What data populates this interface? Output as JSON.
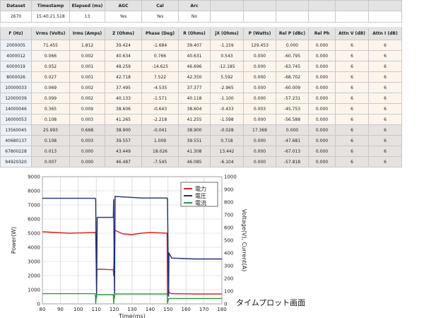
{
  "table": {
    "meta_headers": [
      "Dataset",
      "Timestamp",
      "Elapsed (ms)",
      "AGC",
      "Cal",
      "Arc"
    ],
    "meta_values": [
      "2670",
      "15:40:21.518",
      "13",
      "Yes",
      "Yes",
      "No"
    ],
    "columns": [
      "F (Hz)",
      "Vrms (Volts)",
      "Irms (Amps)",
      "Z (Ohms)",
      "Phase (Deg)",
      "R (Ohms)",
      "jX (Ohms)",
      "P (Watts)",
      "Rel P (dBc)",
      "Rel Ph",
      "Attn V (dB)",
      "Attn I (dB)"
    ],
    "rows": [
      [
        "2000005",
        "71.455",
        "1.812",
        "39.424",
        "-1.684",
        "39.407",
        "-1.159",
        "129.453",
        "0.000",
        "0.000",
        "6",
        "6"
      ],
      [
        "4000012",
        "0.066",
        "0.002",
        "40.634",
        "0.766",
        "40.631",
        "0.543",
        "0.000",
        "-60.795",
        "0.000",
        "6",
        "6"
      ],
      [
        "6000019",
        "0.052",
        "0.001",
        "48.259",
        "-14.625",
        "46.696",
        "-12.185",
        "0.000",
        "-63.745",
        "0.000",
        "6",
        "6"
      ],
      [
        "8000026",
        "0.027",
        "0.001",
        "42.718",
        "7.522",
        "42.350",
        "5.592",
        "0.000",
        "-68.702",
        "0.000",
        "6",
        "6"
      ],
      [
        "10000033",
        "0.069",
        "0.002",
        "37.495",
        "-4.535",
        "37.377",
        "-2.965",
        "0.000",
        "-60.009",
        "0.000",
        "6",
        "6"
      ],
      [
        "12000039",
        "0.099",
        "0.002",
        "40.133",
        "-1.571",
        "40.118",
        "-1.100",
        "0.000",
        "-57.231",
        "0.000",
        "6",
        "6"
      ],
      [
        "14000046",
        "0.365",
        "0.009",
        "38.606",
        "-0.643",
        "38.604",
        "-0.433",
        "0.003",
        "-45.753",
        "0.000",
        "6",
        "6"
      ],
      [
        "16000053",
        "0.108",
        "0.003",
        "41.265",
        "-2.218",
        "41.255",
        "-1.598",
        "0.000",
        "-56.588",
        "0.000",
        "6",
        "6"
      ],
      [
        "13560045",
        "25.993",
        "0.668",
        "38.900",
        "-0.041",
        "38.900",
        "-0.028",
        "17.369",
        "0.000",
        "0.000",
        "6",
        "6"
      ],
      [
        "40680137",
        "0.108",
        "0.003",
        "39.557",
        "1.009",
        "39.551",
        "0.718",
        "0.000",
        "-47.681",
        "0.000",
        "6",
        "6"
      ],
      [
        "67800228",
        "0.013",
        "0.000",
        "43.449",
        "18.026",
        "41.308",
        "13.442",
        "0.000",
        "-67.013",
        "0.000",
        "6",
        "6"
      ],
      [
        "94920320",
        "0.007",
        "0.000",
        "46.487",
        "-7.545",
        "46.085",
        "-6.104",
        "0.000",
        "-57.818",
        "0.000",
        "6",
        "6"
      ]
    ]
  },
  "chart_data": {
    "type": "line",
    "xlabel": "Time(ms)",
    "ylabel": "Power(W)",
    "y2label": "Voltage(V), Current(A)",
    "xlim": [
      80,
      180
    ],
    "ylim": [
      0,
      9000
    ],
    "y2lim": [
      0,
      1000
    ],
    "xticks": [
      80,
      90,
      100,
      110,
      120,
      130,
      140,
      150,
      160,
      170,
      180
    ],
    "yticks": [
      0,
      1000,
      2000,
      3000,
      4000,
      5000,
      6000,
      7000,
      8000,
      9000
    ],
    "y2ticks": [
      0,
      100,
      200,
      300,
      400,
      500,
      600,
      700,
      800,
      900,
      1000
    ],
    "legend_position": "top-right",
    "grid": true,
    "series": [
      {
        "name": "電力",
        "axis": "left",
        "color": "#e02020",
        "x": [
          80,
          95,
          109.5,
          109.7,
          110.2,
          110.4,
          113,
          117,
          119.5,
          119.7,
          120.2,
          120.4,
          125,
          130,
          135,
          140,
          149.5,
          149.7,
          150.3,
          150.5,
          152,
          165,
          180
        ],
        "y": [
          5100,
          5000,
          5050,
          5000,
          1000,
          2450,
          2450,
          2420,
          2420,
          2000,
          5100,
          5200,
          4950,
          4900,
          5000,
          5050,
          5000,
          600,
          1000,
          800,
          720,
          700,
          700
        ]
      },
      {
        "name": "電圧",
        "axis": "right",
        "color": "#1a2f7a",
        "x": [
          80,
          109.5,
          109.7,
          110.2,
          110.5,
          113,
          119.5,
          119.7,
          120.2,
          120.5,
          135,
          149.5,
          149.7,
          150.3,
          150.5,
          152,
          165,
          180
        ],
        "y": [
          830,
          830,
          820,
          50,
          680,
          680,
          680,
          820,
          50,
          845,
          832,
          832,
          820,
          60,
          400,
          360,
          353,
          353
        ]
      },
      {
        "name": "電流",
        "axis": "right",
        "color": "#2a9a3a",
        "x": [
          80,
          109.5,
          109.7,
          110.2,
          110.4,
          119.5,
          119.7,
          120.2,
          120.4,
          149.5,
          149.7,
          150.3,
          150.5,
          180
        ],
        "y": [
          80,
          80,
          5,
          75,
          72,
          72,
          5,
          80,
          78,
          78,
          5,
          40,
          42,
          42
        ]
      }
    ]
  },
  "caption": "タイムプロット画面"
}
